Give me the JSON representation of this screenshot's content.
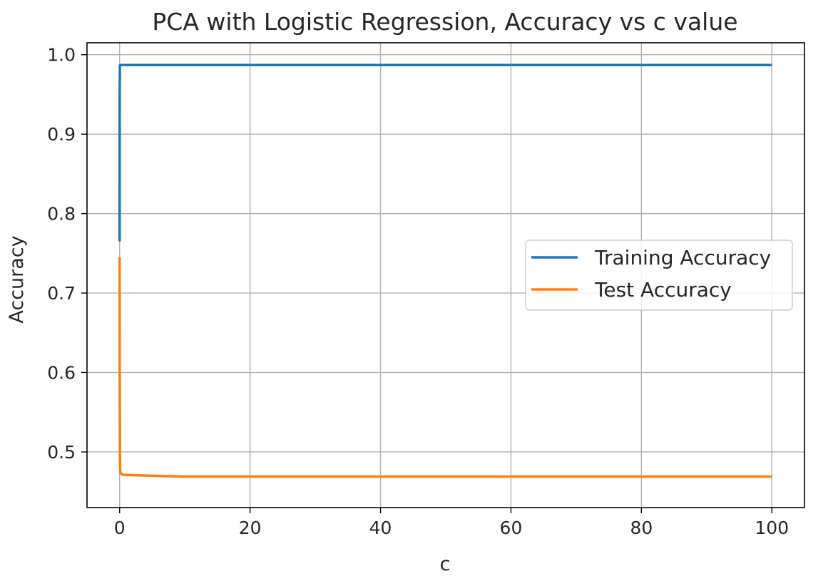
{
  "chart_data": {
    "type": "line",
    "title": "PCA with Logistic Regression, Accuracy vs c value",
    "xlabel": "c",
    "ylabel": "Accuracy",
    "xlim": [
      -5,
      105
    ],
    "ylim": [
      0.43,
      1.015
    ],
    "xticks": [
      0,
      20,
      40,
      60,
      80,
      100
    ],
    "yticks": [
      0.5,
      0.6,
      0.7,
      0.8,
      0.9,
      1.0
    ],
    "xtick_labels": [
      "0",
      "20",
      "40",
      "60",
      "80",
      "100"
    ],
    "ytick_labels": [
      "0.5",
      "0.6",
      "0.7",
      "0.8",
      "0.9",
      "1.0"
    ],
    "grid": true,
    "legend_position": "center-right",
    "series": [
      {
        "name": "Training Accuracy",
        "color": "#1f77b4",
        "points": [
          [
            0.001,
            0.765
          ],
          [
            0.01,
            0.95
          ],
          [
            0.05,
            0.986
          ],
          [
            0.1,
            0.987
          ],
          [
            1,
            0.987
          ],
          [
            10,
            0.987
          ],
          [
            50,
            0.987
          ],
          [
            100,
            0.987
          ]
        ]
      },
      {
        "name": "Test Accuracy",
        "color": "#ff7f0e",
        "points": [
          [
            0.001,
            0.745
          ],
          [
            0.01,
            0.6
          ],
          [
            0.05,
            0.49
          ],
          [
            0.1,
            0.474
          ],
          [
            0.5,
            0.471
          ],
          [
            1,
            0.471
          ],
          [
            5,
            0.47
          ],
          [
            10,
            0.469
          ],
          [
            30,
            0.469
          ],
          [
            60,
            0.469
          ],
          [
            100,
            0.469
          ]
        ]
      }
    ]
  }
}
